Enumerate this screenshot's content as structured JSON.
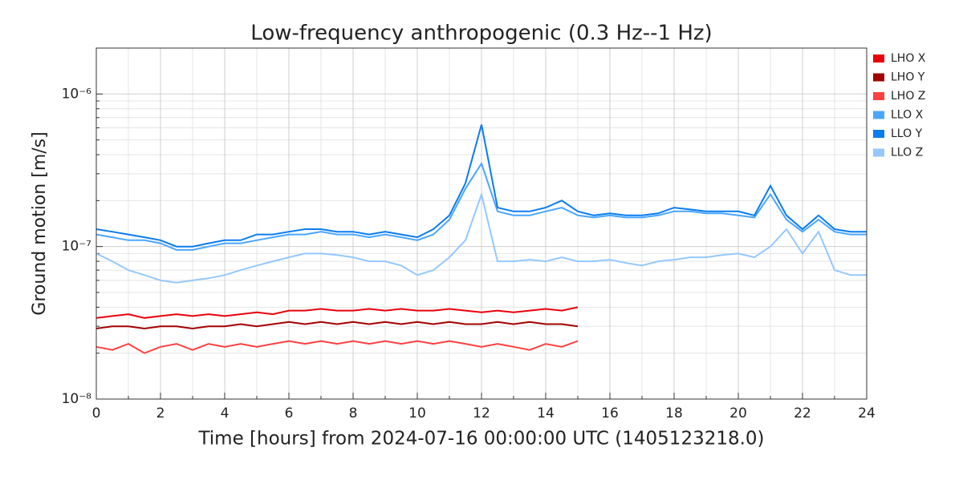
{
  "chart_data": {
    "type": "line",
    "title": "Low-frequency anthropogenic (0.3 Hz--1 Hz)",
    "x_label": "Time [hours] from 2024-07-16 00:00:00 UTC (1405123218.0)",
    "y_label": "Ground motion [m/s]",
    "log_y": true,
    "grid": true,
    "legend": "outside right",
    "xlim": [
      0,
      24
    ],
    "xticks": [
      0,
      2,
      4,
      6,
      8,
      10,
      12,
      14,
      16,
      18,
      20,
      22,
      24
    ],
    "xminor": [
      1,
      3,
      5,
      7,
      9,
      11,
      13,
      15,
      17,
      19,
      21,
      23
    ],
    "ylim": [
      1e-08,
      2e-06
    ],
    "yticks": [
      {
        "value": 1e-08,
        "label": "10⁻⁸"
      },
      {
        "value": 1e-07,
        "label": "10⁻⁷"
      },
      {
        "value": 1e-06,
        "label": "10⁻⁶"
      }
    ],
    "yminor": [
      2e-08,
      3e-08,
      4e-08,
      5e-08,
      6e-08,
      7e-08,
      8e-08,
      9e-08,
      2e-07,
      3e-07,
      4e-07,
      5e-07,
      6e-07,
      7e-07,
      8e-07,
      9e-07,
      2e-06
    ],
    "x": [
      0,
      0.5,
      1,
      1.5,
      2,
      2.5,
      3,
      3.5,
      4,
      4.5,
      5,
      5.5,
      6,
      6.5,
      7,
      7.5,
      8,
      8.5,
      9,
      9.5,
      10,
      10.5,
      11,
      11.5,
      12,
      12.5,
      13,
      13.5,
      14,
      14.5,
      15,
      15.5,
      16,
      16.5,
      17,
      17.5,
      18,
      18.5,
      19,
      19.5,
      20,
      20.5,
      21,
      21.5,
      22,
      22.5,
      23,
      23.5,
      24
    ],
    "series": [
      {
        "name": "LHO X",
        "color": "#e8000b",
        "values": [
          3.4e-08,
          3.5e-08,
          3.6e-08,
          3.4e-08,
          3.5e-08,
          3.6e-08,
          3.5e-08,
          3.6e-08,
          3.5e-08,
          3.6e-08,
          3.7e-08,
          3.6e-08,
          3.8e-08,
          3.8e-08,
          3.9e-08,
          3.8e-08,
          3.8e-08,
          3.9e-08,
          3.8e-08,
          3.9e-08,
          3.8e-08,
          3.8e-08,
          3.9e-08,
          3.8e-08,
          3.7e-08,
          3.8e-08,
          3.7e-08,
          3.8e-08,
          3.9e-08,
          3.8e-08,
          4e-08,
          null,
          null,
          null,
          null,
          null,
          null,
          null,
          null,
          null,
          null,
          null,
          null,
          null,
          null,
          null,
          null,
          null,
          null
        ]
      },
      {
        "name": "LHO Y",
        "color": "#a30000",
        "values": [
          2.9e-08,
          3e-08,
          3e-08,
          2.9e-08,
          3e-08,
          3e-08,
          2.9e-08,
          3e-08,
          3e-08,
          3.1e-08,
          3e-08,
          3.1e-08,
          3.2e-08,
          3.1e-08,
          3.2e-08,
          3.1e-08,
          3.2e-08,
          3.1e-08,
          3.2e-08,
          3.1e-08,
          3.2e-08,
          3.1e-08,
          3.2e-08,
          3.1e-08,
          3.1e-08,
          3.2e-08,
          3.1e-08,
          3.2e-08,
          3.1e-08,
          3.1e-08,
          3e-08,
          null,
          null,
          null,
          null,
          null,
          null,
          null,
          null,
          null,
          null,
          null,
          null,
          null,
          null,
          null,
          null,
          null,
          null
        ]
      },
      {
        "name": "LHO Z",
        "color": "#ff4040",
        "values": [
          2.2e-08,
          2.1e-08,
          2.3e-08,
          2e-08,
          2.2e-08,
          2.3e-08,
          2.1e-08,
          2.3e-08,
          2.2e-08,
          2.3e-08,
          2.2e-08,
          2.3e-08,
          2.4e-08,
          2.3e-08,
          2.4e-08,
          2.3e-08,
          2.4e-08,
          2.3e-08,
          2.4e-08,
          2.3e-08,
          2.4e-08,
          2.3e-08,
          2.4e-08,
          2.3e-08,
          2.2e-08,
          2.3e-08,
          2.2e-08,
          2.1e-08,
          2.3e-08,
          2.2e-08,
          2.4e-08,
          null,
          null,
          null,
          null,
          null,
          null,
          null,
          null,
          null,
          null,
          null,
          null,
          null,
          null,
          null,
          null,
          null,
          null
        ]
      },
      {
        "name": "LLO X",
        "color": "#4ba6ff",
        "values": [
          1.2e-07,
          1.15e-07,
          1.1e-07,
          1.1e-07,
          1.05e-07,
          9.5e-08,
          9.5e-08,
          1e-07,
          1.05e-07,
          1.05e-07,
          1.1e-07,
          1.15e-07,
          1.2e-07,
          1.2e-07,
          1.25e-07,
          1.2e-07,
          1.2e-07,
          1.15e-07,
          1.2e-07,
          1.15e-07,
          1.1e-07,
          1.2e-07,
          1.5e-07,
          2.4e-07,
          3.5e-07,
          1.7e-07,
          1.6e-07,
          1.6e-07,
          1.7e-07,
          1.8e-07,
          1.6e-07,
          1.55e-07,
          1.6e-07,
          1.55e-07,
          1.55e-07,
          1.6e-07,
          1.7e-07,
          1.7e-07,
          1.65e-07,
          1.65e-07,
          1.6e-07,
          1.55e-07,
          2.2e-07,
          1.5e-07,
          1.25e-07,
          1.5e-07,
          1.25e-07,
          1.2e-07,
          1.2e-07
        ]
      },
      {
        "name": "LLO Y",
        "color": "#0a7cf0",
        "values": [
          1.3e-07,
          1.25e-07,
          1.2e-07,
          1.15e-07,
          1.1e-07,
          1e-07,
          1e-07,
          1.05e-07,
          1.1e-07,
          1.1e-07,
          1.2e-07,
          1.2e-07,
          1.25e-07,
          1.3e-07,
          1.3e-07,
          1.25e-07,
          1.25e-07,
          1.2e-07,
          1.25e-07,
          1.2e-07,
          1.15e-07,
          1.3e-07,
          1.6e-07,
          2.6e-07,
          6.3e-07,
          1.8e-07,
          1.7e-07,
          1.7e-07,
          1.8e-07,
          2e-07,
          1.7e-07,
          1.6e-07,
          1.65e-07,
          1.6e-07,
          1.6e-07,
          1.65e-07,
          1.8e-07,
          1.75e-07,
          1.7e-07,
          1.7e-07,
          1.7e-07,
          1.6e-07,
          2.5e-07,
          1.6e-07,
          1.3e-07,
          1.6e-07,
          1.3e-07,
          1.25e-07,
          1.25e-07
        ]
      },
      {
        "name": "LLO Z",
        "color": "#94c8ff",
        "values": [
          9e-08,
          8e-08,
          7e-08,
          6.5e-08,
          6e-08,
          5.8e-08,
          6e-08,
          6.2e-08,
          6.5e-08,
          7e-08,
          7.5e-08,
          8e-08,
          8.5e-08,
          9e-08,
          9e-08,
          8.8e-08,
          8.5e-08,
          8e-08,
          8e-08,
          7.5e-08,
          6.5e-08,
          7e-08,
          8.5e-08,
          1.1e-07,
          2.2e-07,
          8e-08,
          8e-08,
          8.2e-08,
          8e-08,
          8.5e-08,
          8e-08,
          8e-08,
          8.2e-08,
          7.8e-08,
          7.5e-08,
          8e-08,
          8.2e-08,
          8.5e-08,
          8.5e-08,
          8.8e-08,
          9e-08,
          8.5e-08,
          1e-07,
          1.3e-07,
          9e-08,
          1.25e-07,
          7e-08,
          6.5e-08,
          6.5e-08
        ]
      }
    ]
  }
}
